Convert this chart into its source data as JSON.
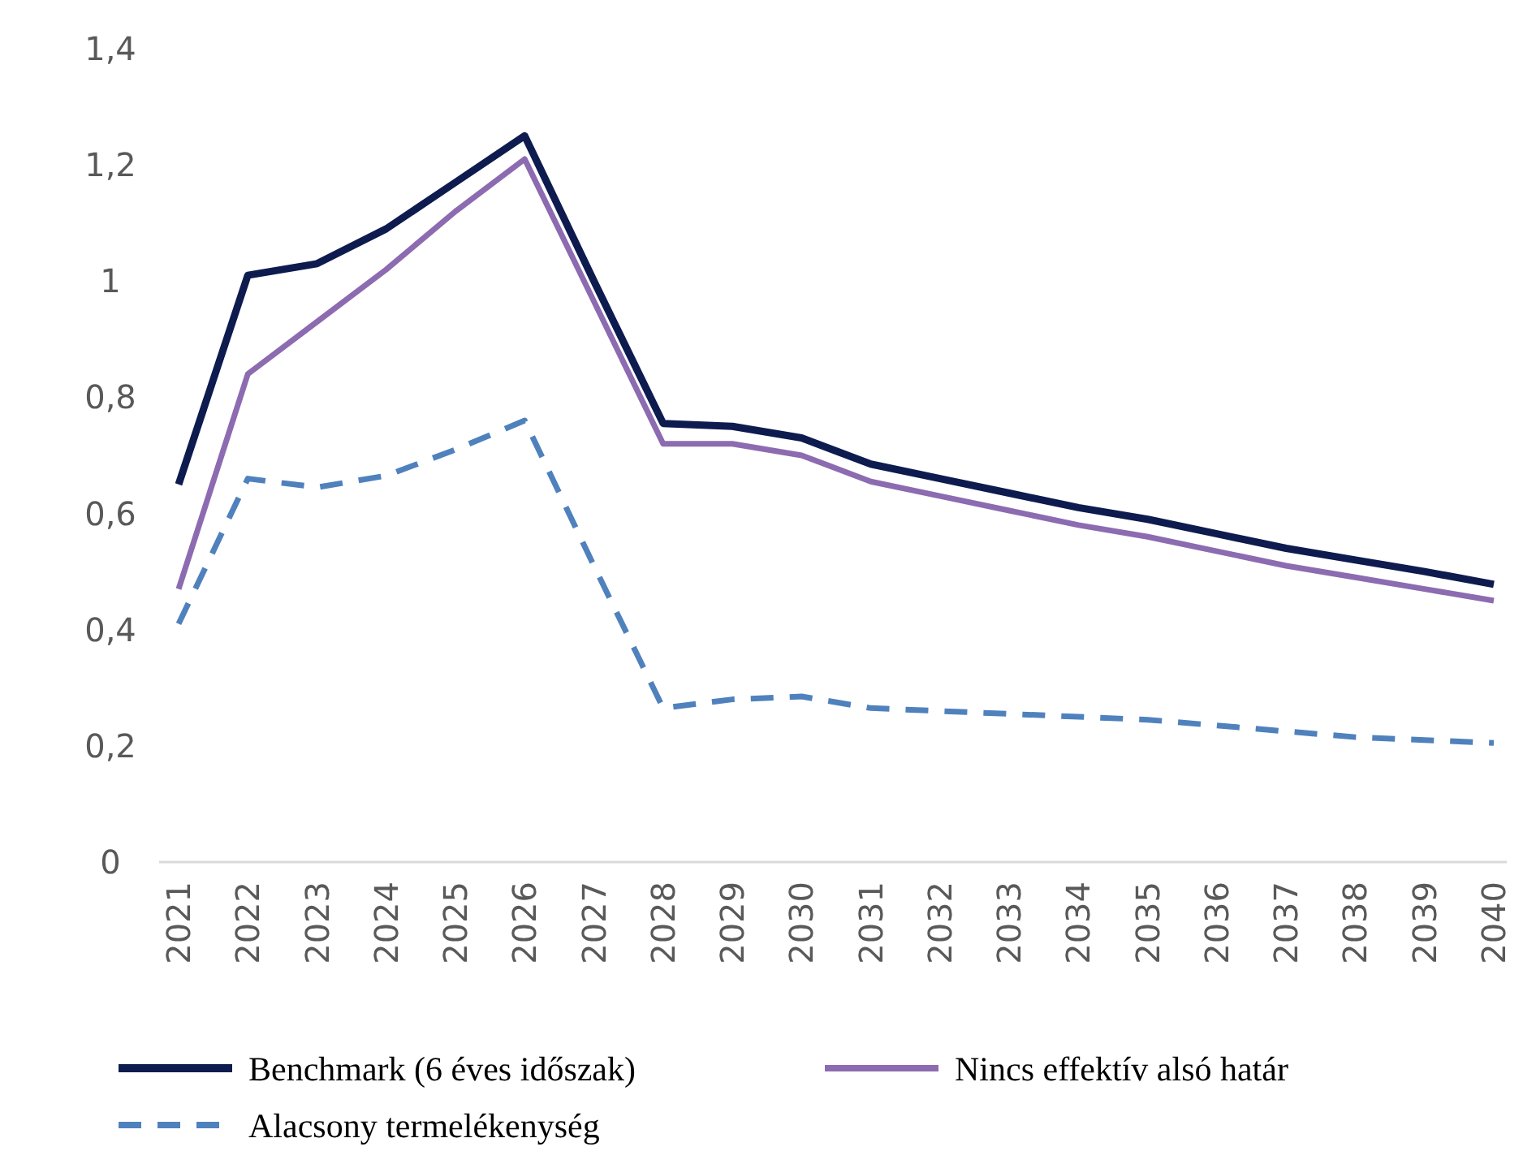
{
  "chart_data": {
    "type": "line",
    "categories": [
      "2021",
      "2022",
      "2023",
      "2024",
      "2025",
      "2026",
      "2027",
      "2028",
      "2029",
      "2030",
      "2031",
      "2032",
      "2033",
      "2034",
      "2035",
      "2036",
      "2037",
      "2038",
      "2039",
      "2040"
    ],
    "series": [
      {
        "name": "Benchmark (6 éves időszak)",
        "color": "#0d1b4f",
        "line_style": "solid",
        "values": [
          0.65,
          1.01,
          1.03,
          1.09,
          1.17,
          1.25,
          1.0,
          0.755,
          0.75,
          0.73,
          0.685,
          0.66,
          0.635,
          0.61,
          0.59,
          0.565,
          0.54,
          0.52,
          0.5,
          0.478
        ]
      },
      {
        "name": "Nincs effektív alsó határ",
        "color": "#8c6bb1",
        "line_style": "solid",
        "values": [
          0.47,
          0.84,
          0.93,
          1.02,
          1.12,
          1.21,
          0.965,
          0.72,
          0.72,
          0.7,
          0.655,
          0.63,
          0.605,
          0.58,
          0.56,
          0.535,
          0.51,
          0.49,
          0.47,
          0.45
        ]
      },
      {
        "name": "Alacsony termelékenység",
        "color": "#4f81bd",
        "line_style": "dashed",
        "values": [
          0.41,
          0.66,
          0.645,
          0.665,
          0.71,
          0.76,
          0.51,
          0.265,
          0.28,
          0.285,
          0.265,
          0.26,
          0.255,
          0.25,
          0.245,
          0.235,
          0.225,
          0.215,
          0.21,
          0.205
        ]
      }
    ],
    "ylim": [
      0,
      1.4
    ],
    "yticks": [
      0,
      {
        "value": 0.2,
        "label": "0,2"
      },
      {
        "value": 0.4,
        "label": "0,4"
      },
      {
        "value": 0.6,
        "label": "0,6"
      },
      {
        "value": 0.8,
        "label": "0,8"
      },
      1,
      {
        "value": 1.2,
        "label": "1,2"
      },
      {
        "value": 1.4,
        "label": "1,4"
      }
    ],
    "grid": false,
    "legend": "bottom",
    "marker": "none"
  }
}
